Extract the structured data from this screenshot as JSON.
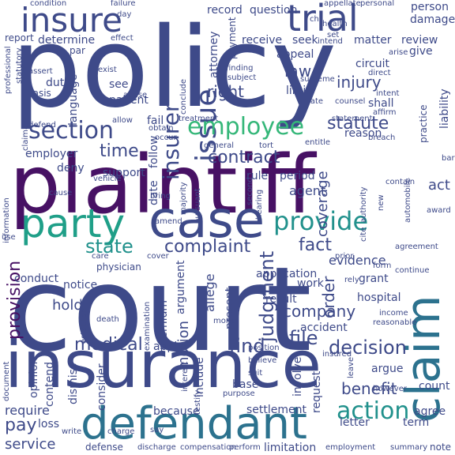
{
  "palette": {
    "darkpurple": "#471164",
    "indigo": "#3b528b",
    "slate": "#3e4a89",
    "blue": "#31688e",
    "steel": "#2c728e",
    "teal": "#21918c",
    "seagreen": "#1f9f88",
    "green": "#35b779",
    "lime": "#6ece58",
    "lightgreen": "#b5de2b",
    "yellow": "#fde725"
  },
  "words": [
    {
      "text": "policy",
      "color": "slate"
    },
    {
      "text": "court",
      "color": "slate"
    },
    {
      "text": "plaintiff",
      "color": "darkpurple"
    },
    {
      "text": "insurance",
      "color": "slate"
    },
    {
      "text": "case",
      "color": "slate"
    },
    {
      "text": "defendant",
      "color": "steel"
    },
    {
      "text": "party",
      "color": "seagreen"
    },
    {
      "text": "trial",
      "color": "slate"
    },
    {
      "text": "claim",
      "color": "steel"
    },
    {
      "text": "insure",
      "color": "slate"
    },
    {
      "text": "issue",
      "color": "slate"
    },
    {
      "text": "employee",
      "color": "green"
    },
    {
      "text": "section",
      "color": "slate"
    },
    {
      "text": "provide",
      "color": "teal"
    },
    {
      "text": "action",
      "color": "teal"
    },
    {
      "text": "insurer",
      "color": "slate"
    },
    {
      "text": "contract",
      "color": "slate"
    },
    {
      "text": "complaint",
      "color": "slate"
    },
    {
      "text": "state",
      "color": "teal"
    },
    {
      "text": "time",
      "color": "slate"
    },
    {
      "text": "statute",
      "color": "slate"
    },
    {
      "text": "judgment",
      "color": "slate"
    },
    {
      "text": "coverage",
      "color": "slate"
    },
    {
      "text": "decision",
      "color": "slate"
    },
    {
      "text": "provision",
      "color": "darkpurple"
    },
    {
      "text": "medical",
      "color": "slate"
    },
    {
      "text": "company",
      "color": "slate"
    },
    {
      "text": "file",
      "color": "slate"
    },
    {
      "text": "find",
      "color": "slate"
    },
    {
      "text": "motion",
      "color": "slate"
    },
    {
      "text": "order",
      "color": "slate"
    },
    {
      "text": "injury",
      "color": "slate"
    },
    {
      "text": "law",
      "color": "slate"
    },
    {
      "text": "right",
      "color": "slate"
    },
    {
      "text": "benefit",
      "color": "slate"
    },
    {
      "text": "pay",
      "color": "slate"
    },
    {
      "text": "service",
      "color": "slate"
    },
    {
      "text": "record",
      "color": "slate"
    },
    {
      "text": "receive",
      "color": "slate"
    },
    {
      "text": "seek",
      "color": "slate"
    },
    {
      "text": "matter",
      "color": "slate"
    },
    {
      "text": "review",
      "color": "slate"
    },
    {
      "text": "determine",
      "color": "slate"
    },
    {
      "text": "language",
      "color": "slate"
    },
    {
      "text": "patient",
      "color": "slate"
    },
    {
      "text": "see",
      "color": "slate"
    },
    {
      "text": "duty",
      "color": "slate"
    },
    {
      "text": "fail",
      "color": "slate"
    },
    {
      "text": "employer",
      "color": "slate"
    },
    {
      "text": "deny",
      "color": "slate"
    },
    {
      "text": "support",
      "color": "slate"
    },
    {
      "text": "follow",
      "color": "slate"
    },
    {
      "text": "date",
      "color": "slate"
    },
    {
      "text": "fact",
      "color": "slate"
    },
    {
      "text": "evidence",
      "color": "slate"
    },
    {
      "text": "act",
      "color": "slate"
    },
    {
      "text": "agent",
      "color": "slate"
    },
    {
      "text": "period",
      "color": "slate"
    },
    {
      "text": "rule",
      "color": "slate"
    },
    {
      "text": "reason",
      "color": "slate"
    },
    {
      "text": "application",
      "color": "slate"
    },
    {
      "text": "hold",
      "color": "slate"
    },
    {
      "text": "notice",
      "color": "slate"
    },
    {
      "text": "conduct",
      "color": "slate"
    },
    {
      "text": "require",
      "color": "slate"
    },
    {
      "text": "opinion",
      "color": "slate"
    },
    {
      "text": "contend",
      "color": "slate"
    },
    {
      "text": "dismiss",
      "color": "slate"
    },
    {
      "text": "consider",
      "color": "slate"
    },
    {
      "text": "apply",
      "color": "slate"
    },
    {
      "text": "include",
      "color": "slate"
    },
    {
      "text": "base",
      "color": "slate"
    },
    {
      "text": "involve",
      "color": "slate"
    },
    {
      "text": "request",
      "color": "slate"
    },
    {
      "text": "argue",
      "color": "slate"
    },
    {
      "text": "count",
      "color": "slate"
    },
    {
      "text": "grant",
      "color": "slate"
    },
    {
      "text": "hospital",
      "color": "slate"
    },
    {
      "text": "accident",
      "color": "slate"
    },
    {
      "text": "result",
      "color": "slate"
    },
    {
      "text": "work",
      "color": "slate"
    },
    {
      "text": "present",
      "color": "slate"
    },
    {
      "text": "allege",
      "color": "slate"
    },
    {
      "text": "settlement",
      "color": "slate"
    },
    {
      "text": "agree",
      "color": "slate"
    },
    {
      "text": "term",
      "color": "slate"
    },
    {
      "text": "letter",
      "color": "slate"
    },
    {
      "text": "loss",
      "color": "slate"
    },
    {
      "text": "because",
      "color": "slate"
    },
    {
      "text": "defense",
      "color": "slate"
    },
    {
      "text": "discharge",
      "color": "slate"
    },
    {
      "text": "compensation",
      "color": "slate"
    },
    {
      "text": "perform",
      "color": "slate"
    },
    {
      "text": "limitation",
      "color": "slate"
    },
    {
      "text": "employment",
      "color": "slate"
    },
    {
      "text": "summary",
      "color": "slate"
    },
    {
      "text": "note",
      "color": "slate"
    },
    {
      "text": "question",
      "color": "slate"
    },
    {
      "text": "payment",
      "color": "slate"
    },
    {
      "text": "attorney",
      "color": "slate"
    },
    {
      "text": "appeal",
      "color": "slate"
    },
    {
      "text": "circuit",
      "color": "slate"
    },
    {
      "text": "limit",
      "color": "slate"
    },
    {
      "text": "person",
      "color": "slate"
    },
    {
      "text": "damage",
      "color": "slate"
    },
    {
      "text": "give",
      "color": "slate"
    },
    {
      "text": "shall",
      "color": "slate"
    },
    {
      "text": "liability",
      "color": "slate"
    },
    {
      "text": "practice",
      "color": "slate"
    },
    {
      "text": "report",
      "color": "slate"
    },
    {
      "text": "par",
      "color": "slate"
    },
    {
      "text": "professional",
      "color": "slate"
    },
    {
      "text": "statutory",
      "color": "slate"
    },
    {
      "text": "basis",
      "color": "slate"
    },
    {
      "text": "claimant",
      "color": "slate"
    },
    {
      "text": "abuse",
      "color": "slate"
    },
    {
      "text": "treatment",
      "color": "slate"
    },
    {
      "text": "statement",
      "color": "slate"
    },
    {
      "text": "affirm",
      "color": "slate"
    },
    {
      "text": "contain",
      "color": "slate"
    },
    {
      "text": "general",
      "color": "slate"
    },
    {
      "text": "tort",
      "color": "slate"
    },
    {
      "text": "entitle",
      "color": "slate"
    },
    {
      "text": "award",
      "color": "slate"
    },
    {
      "text": "new",
      "color": "slate"
    },
    {
      "text": "automobile",
      "color": "slate"
    },
    {
      "text": "bring",
      "color": "slate"
    },
    {
      "text": "majority",
      "color": "slate"
    },
    {
      "text": "pursuant",
      "color": "slate"
    },
    {
      "text": "hearing",
      "color": "slate"
    },
    {
      "text": "authority",
      "color": "slate"
    },
    {
      "text": "vehicle",
      "color": "slate"
    },
    {
      "text": "cause",
      "color": "slate"
    },
    {
      "text": "information",
      "color": "slate"
    },
    {
      "text": "use",
      "color": "slate"
    },
    {
      "text": "care",
      "color": "slate"
    },
    {
      "text": "physician",
      "color": "slate"
    },
    {
      "text": "cover",
      "color": "slate"
    },
    {
      "text": "amend",
      "color": "slate"
    },
    {
      "text": "cite",
      "color": "slate"
    },
    {
      "text": "prior",
      "color": "slate"
    },
    {
      "text": "form",
      "color": "slate"
    },
    {
      "text": "continue",
      "color": "slate"
    },
    {
      "text": "agreement",
      "color": "slate"
    },
    {
      "text": "rely",
      "color": "slate"
    },
    {
      "text": "examination",
      "color": "slate"
    },
    {
      "text": "establish",
      "color": "slate"
    },
    {
      "text": "death",
      "color": "slate"
    },
    {
      "text": "premium",
      "color": "slate"
    },
    {
      "text": "argument",
      "color": "slate"
    },
    {
      "text": "month",
      "color": "slate"
    },
    {
      "text": "position",
      "color": "slate"
    },
    {
      "text": "income",
      "color": "slate"
    },
    {
      "text": "reasonable",
      "color": "slate"
    },
    {
      "text": "believe",
      "color": "slate"
    },
    {
      "text": "suit",
      "color": "slate"
    },
    {
      "text": "insured",
      "color": "slate"
    },
    {
      "text": "leave",
      "color": "slate"
    },
    {
      "text": "purpose",
      "color": "slate"
    },
    {
      "text": "however",
      "color": "slate"
    },
    {
      "text": "testify",
      "color": "slate"
    },
    {
      "text": "interest",
      "color": "slate"
    },
    {
      "text": "charge",
      "color": "slate"
    },
    {
      "text": "document",
      "color": "slate"
    },
    {
      "text": "write",
      "color": "slate"
    },
    {
      "text": "say",
      "color": "slate"
    },
    {
      "text": "condition",
      "color": "slate"
    },
    {
      "text": "failure",
      "color": "slate"
    },
    {
      "text": "day",
      "color": "slate"
    },
    {
      "text": "appellate",
      "color": "slate"
    },
    {
      "text": "personal",
      "color": "slate"
    },
    {
      "text": "health",
      "color": "slate"
    },
    {
      "text": "set",
      "color": "slate"
    },
    {
      "text": "intend",
      "color": "slate"
    },
    {
      "text": "arise",
      "color": "slate"
    },
    {
      "text": "exist",
      "color": "slate"
    },
    {
      "text": "assert",
      "color": "slate"
    },
    {
      "text": "effect",
      "color": "slate"
    },
    {
      "text": "finding",
      "color": "slate"
    },
    {
      "text": "subject",
      "color": "slate"
    },
    {
      "text": "conclude",
      "color": "slate"
    },
    {
      "text": "supreme",
      "color": "slate"
    },
    {
      "text": "relate",
      "color": "slate"
    },
    {
      "text": "intent",
      "color": "slate"
    },
    {
      "text": "counsel",
      "color": "slate"
    },
    {
      "text": "direct",
      "color": "slate"
    },
    {
      "text": "obtain",
      "color": "slate"
    },
    {
      "text": "occur",
      "color": "slate"
    },
    {
      "text": "allow",
      "color": "slate"
    },
    {
      "text": "defend",
      "color": "slate"
    },
    {
      "text": "second",
      "color": "slate"
    },
    {
      "text": "breach",
      "color": "slate"
    },
    {
      "text": "bar",
      "color": "slate"
    },
    {
      "text": "ch",
      "color": "slate"
    }
  ]
}
